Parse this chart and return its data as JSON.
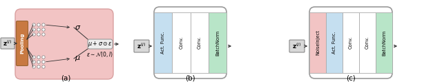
{
  "fig_width": 6.4,
  "fig_height": 1.22,
  "dpi": 100,
  "bg_color": "#ffffff",
  "panel_a": {
    "label": "(a)",
    "vae_bg_color": "#f2c4c4",
    "pooling_color": "#c87941",
    "pooling_text": "Pooling"
  },
  "panel_b": {
    "label": "(b)",
    "act_func_color": "#c5dff0",
    "conv_color": "#ffffff",
    "batchnorm_color": "#b8e5c8",
    "labels": [
      "Act. Func.",
      "Conv.",
      "Conv.",
      "BatchNorm"
    ]
  },
  "panel_c": {
    "label": "(c)",
    "noiseinject_color": "#f2c4c4",
    "act_func_color": "#c5dff0",
    "conv_color": "#ffffff",
    "batchnorm_color": "#b8e5c8",
    "labels": [
      "NoiseInject",
      "Act. Func.",
      "Conv.",
      "Conv.",
      "BatchNorm"
    ]
  }
}
